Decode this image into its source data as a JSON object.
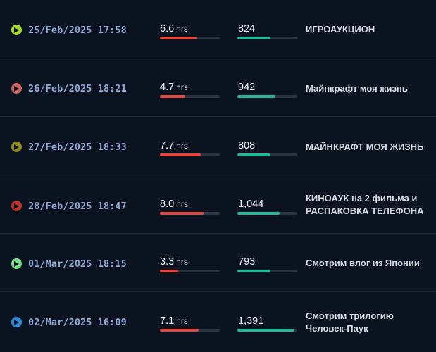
{
  "streams": [
    {
      "date": "25/Feb/2025 17:58",
      "hours": "6.6",
      "hours_unit": "hrs",
      "hours_fraction": 0.61,
      "viewers": "824",
      "viewers_fraction": 0.55,
      "title": "ИГРОАУКЦИОН",
      "dot_color": "#a6d62a",
      "icon": "play-icon"
    },
    {
      "date": "26/Feb/2025 18:21",
      "hours": "4.7",
      "hours_unit": "hrs",
      "hours_fraction": 0.42,
      "viewers": "942",
      "viewers_fraction": 0.63,
      "title": "Майнкрафт моя жизнь",
      "dot_color": "#c9655f",
      "icon": "play-icon"
    },
    {
      "date": "27/Feb/2025 18:33",
      "hours": "7.7",
      "hours_unit": "hrs",
      "hours_fraction": 0.68,
      "viewers": "808",
      "viewers_fraction": 0.55,
      "title": "МАЙНКРАФТ МОЯ ЖИЗНЬ",
      "dot_color": "#8e8e1e",
      "icon": "play-icon"
    },
    {
      "date": "28/Feb/2025 18:47",
      "hours": "8.0",
      "hours_unit": "hrs",
      "hours_fraction": 0.73,
      "viewers": "1,044",
      "viewers_fraction": 0.71,
      "title": "КИНОАУК на 2 фильма и РАСПАКОВКА ТЕЛЕФОНА",
      "dot_color": "#b9352c",
      "icon": "play-icon"
    },
    {
      "date": "01/Mar/2025 18:15",
      "hours": "3.3",
      "hours_unit": "hrs",
      "hours_fraction": 0.3,
      "viewers": "793",
      "viewers_fraction": 0.55,
      "title": "Смотрим влог из Японии",
      "dot_color": "#7ee08a",
      "icon": "play-icon"
    },
    {
      "date": "02/Mar/2025 16:09",
      "hours": "7.1",
      "hours_unit": "hrs",
      "hours_fraction": 0.65,
      "viewers": "1,391",
      "viewers_fraction": 0.94,
      "title": "Смотрим трилогию Человек-Паук",
      "dot_color": "#2f8ad8",
      "icon": "play-icon"
    }
  ]
}
